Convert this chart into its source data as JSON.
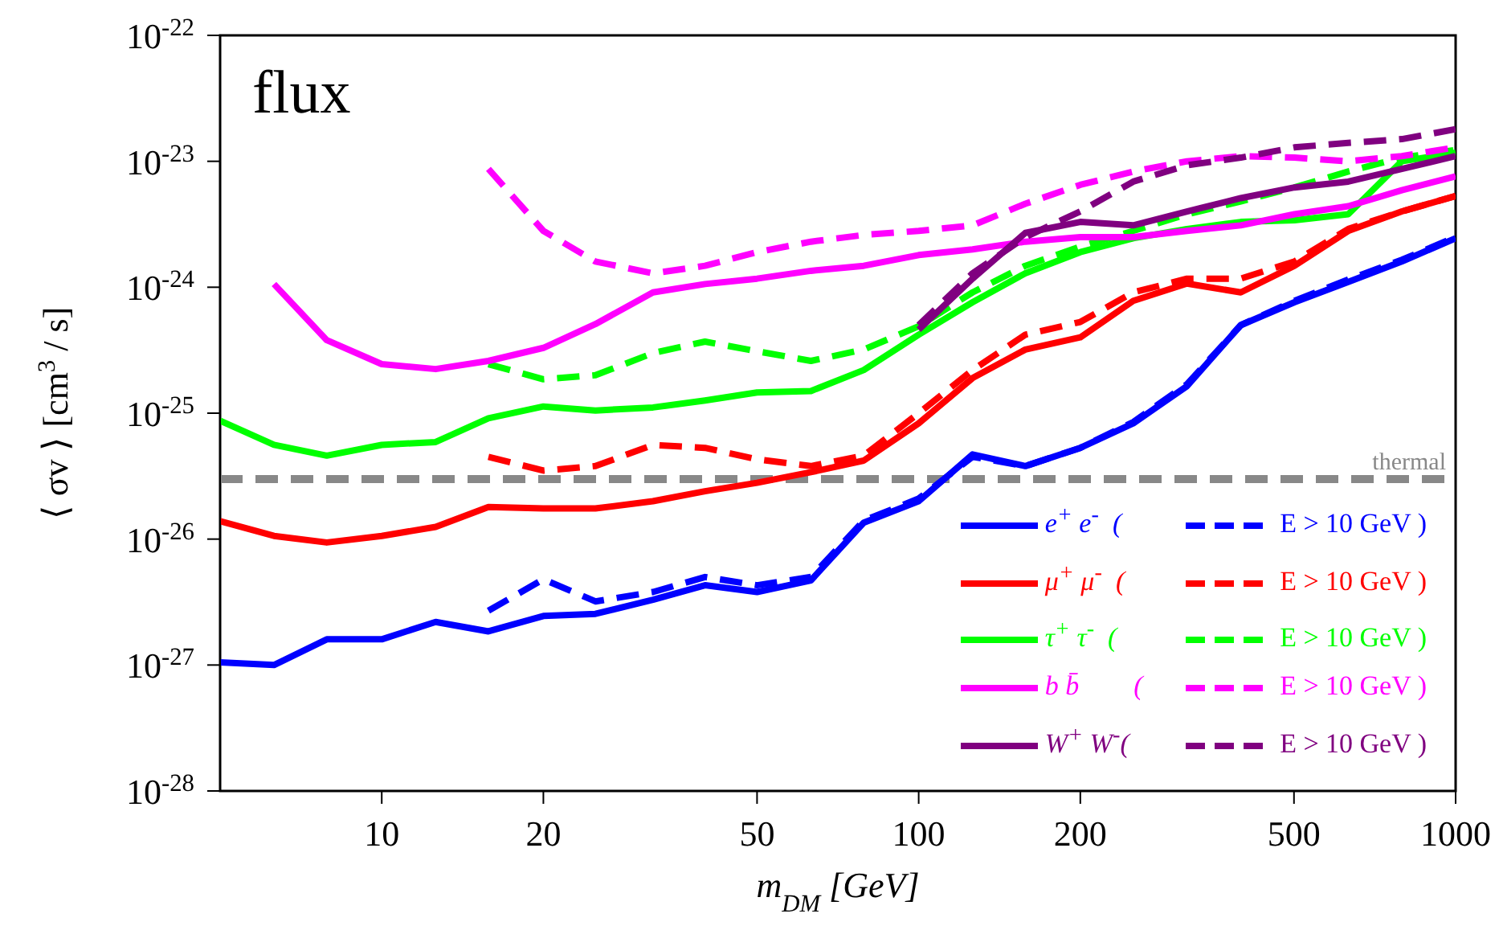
{
  "chart_data": {
    "type": "line",
    "title": "flux",
    "xlabel": "m$_{DM}$ [GeV]",
    "ylabel": "⟨ σv ⟩ [cm$^{3}$ / s]",
    "x": [
      5,
      6.3,
      7.9,
      10,
      12.6,
      15.8,
      20,
      25,
      32,
      40,
      50,
      63,
      79,
      100,
      126,
      158,
      200,
      251,
      316,
      398,
      501,
      631,
      794,
      1000
    ],
    "series": [
      {
        "name": "e$^{+}$ e$^{-}$  (",
        "color": "#0000ff",
        "line_style": "solid",
        "values": [
          1.05e-27,
          1e-27,
          1.6e-27,
          1.6e-27,
          2.2e-27,
          1.85e-27,
          2.45e-27,
          2.55e-27,
          3.3e-27,
          4.3e-27,
          3.8e-27,
          4.7e-27,
          1.35e-26,
          2e-26,
          4.7e-26,
          3.8e-26,
          5.3e-26,
          8.3e-26,
          1.64e-25,
          5e-25,
          7.6e-25,
          1.1e-24,
          1.6e-24,
          2.45e-24
        ]
      },
      {
        "name": "E > 10  GeV )",
        "color": "#0000ff",
        "line_style": "dashed",
        "values": [
          null,
          null,
          null,
          null,
          null,
          2.7e-27,
          4.8e-27,
          3.2e-27,
          3.8e-27,
          5e-27,
          4.3e-27,
          5e-27,
          1.4e-26,
          2.1e-26,
          4.5e-26,
          3.8e-26,
          5.3e-26,
          8.5e-26,
          1.7e-25,
          5e-25,
          7.8e-25,
          1.15e-24,
          1.65e-24,
          2.5e-24
        ]
      },
      {
        "name": "μ$^{+}$ μ$^{-}$  (",
        "color": "#ff0000",
        "line_style": "solid",
        "values": [
          1.39e-26,
          1.06e-26,
          9.4e-27,
          1.06e-26,
          1.25e-26,
          1.8e-26,
          1.75e-26,
          1.75e-26,
          2e-26,
          2.4e-26,
          2.8e-26,
          3.4e-26,
          4.2e-26,
          8.3e-26,
          1.9e-25,
          3.2e-25,
          4e-25,
          7.8e-25,
          1.07e-24,
          9.1e-25,
          1.48e-24,
          2.8e-24,
          4e-24,
          5.3e-24
        ]
      },
      {
        "name": "E > 10  GeV )",
        "color": "#ff0000",
        "line_style": "dashed",
        "values": [
          null,
          null,
          null,
          null,
          null,
          4.5e-26,
          3.5e-26,
          3.8e-26,
          5.6e-26,
          5.3e-26,
          4.3e-26,
          3.8e-26,
          4.6e-26,
          1e-25,
          2.2e-25,
          4.2e-25,
          5.3e-25,
          9.1e-25,
          1.17e-24,
          1.17e-24,
          1.6e-24,
          2.9e-24,
          4e-24,
          5.3e-24
        ]
      },
      {
        "name": "τ$^{+}$ τ$^{-}$  (",
        "color": "#00ff00",
        "line_style": "solid",
        "values": [
          8.7e-26,
          5.6e-26,
          4.6e-26,
          5.6e-26,
          5.9e-26,
          9.1e-26,
          1.13e-25,
          1.05e-25,
          1.11e-25,
          1.26e-25,
          1.46e-25,
          1.5e-25,
          2.2e-25,
          4.2e-25,
          7.6e-25,
          1.29e-24,
          1.9e-24,
          2.45e-24,
          2.9e-24,
          3.3e-24,
          3.4e-24,
          3.8e-24,
          1e-23,
          1.17e-23
        ]
      },
      {
        "name": "E > 10  GeV )",
        "color": "#00ff00",
        "line_style": "dashed",
        "values": [
          null,
          null,
          null,
          null,
          null,
          2.45e-25,
          1.86e-25,
          2e-25,
          3e-25,
          3.7e-25,
          3.1e-25,
          2.6e-25,
          3.2e-25,
          4.9e-25,
          9.1e-25,
          1.48e-24,
          2.1e-24,
          2.8e-24,
          3.8e-24,
          4.8e-24,
          6.2e-24,
          8.3e-24,
          1.07e-23,
          1.23e-23
        ]
      },
      {
        "name": "b b̄        (",
        "color": "#ff00ff",
        "line_style": "solid",
        "values": [
          null,
          1.06e-24,
          3.8e-25,
          2.45e-25,
          2.24e-25,
          2.6e-25,
          3.3e-25,
          5.1e-25,
          9.1e-25,
          1.06e-24,
          1.17e-24,
          1.35e-24,
          1.48e-24,
          1.8e-24,
          2e-24,
          2.3e-24,
          2.5e-24,
          2.5e-24,
          2.8e-24,
          3.1e-24,
          3.8e-24,
          4.4e-24,
          5.9e-24,
          7.6e-24
        ]
      },
      {
        "name": "E > 10  GeV )",
        "color": "#ff00ff",
        "line_style": "dashed",
        "values": [
          null,
          null,
          null,
          null,
          null,
          8.7e-24,
          2.8e-24,
          1.6e-24,
          1.29e-24,
          1.48e-24,
          1.9e-24,
          2.3e-24,
          2.6e-24,
          2.8e-24,
          3.1e-24,
          4.6e-24,
          6.5e-24,
          8.3e-24,
          1e-23,
          1.1e-23,
          1.07e-23,
          1e-23,
          1.1e-23,
          1.29e-23
        ]
      },
      {
        "name": "W$^{+}$ W$^{-}$(",
        "color": "#800080",
        "line_style": "solid",
        "values": [
          null,
          null,
          null,
          null,
          null,
          null,
          null,
          null,
          null,
          null,
          null,
          null,
          null,
          4.6e-25,
          1.17e-24,
          2.7e-24,
          3.3e-24,
          3.1e-24,
          4e-24,
          5.1e-24,
          6.2e-24,
          6.9e-24,
          8.7e-24,
          1.1e-23
        ]
      },
      {
        "name": "E > 10  GeV )",
        "color": "#800080",
        "line_style": "dashed",
        "values": [
          null,
          null,
          null,
          null,
          null,
          null,
          null,
          null,
          null,
          null,
          null,
          null,
          null,
          5e-25,
          1.29e-24,
          2.5e-24,
          4e-24,
          6.9e-24,
          9.3e-24,
          1.07e-23,
          1.29e-23,
          1.4e-23,
          1.5e-23,
          1.8e-23
        ]
      }
    ],
    "ref_lines": [
      {
        "axis": "y",
        "value": 3e-26,
        "label": "thermal",
        "color": "#888888",
        "line_style": "dashed"
      }
    ],
    "log": "xy",
    "xlim": [
      5,
      1000
    ],
    "xticks": [
      10,
      20,
      50,
      100,
      200,
      500,
      1000
    ],
    "ylim": [
      1e-28,
      1e-22
    ],
    "yticks": [
      {
        "value": 1e-28,
        "label": "10$^{-28}$"
      },
      {
        "value": 1e-27,
        "label": "10$^{-27}$"
      },
      {
        "value": 1e-26,
        "label": "10$^{-26}$"
      },
      {
        "value": 1e-25,
        "label": "10$^{-25}$"
      },
      {
        "value": 1e-24,
        "label": "10$^{-24}$"
      },
      {
        "value": 1e-23,
        "label": "10$^{-23}$"
      },
      {
        "value": 1e-22,
        "label": "10$^{-22}$"
      }
    ],
    "grid": false,
    "legend": "bottom right",
    "marker": "none"
  }
}
